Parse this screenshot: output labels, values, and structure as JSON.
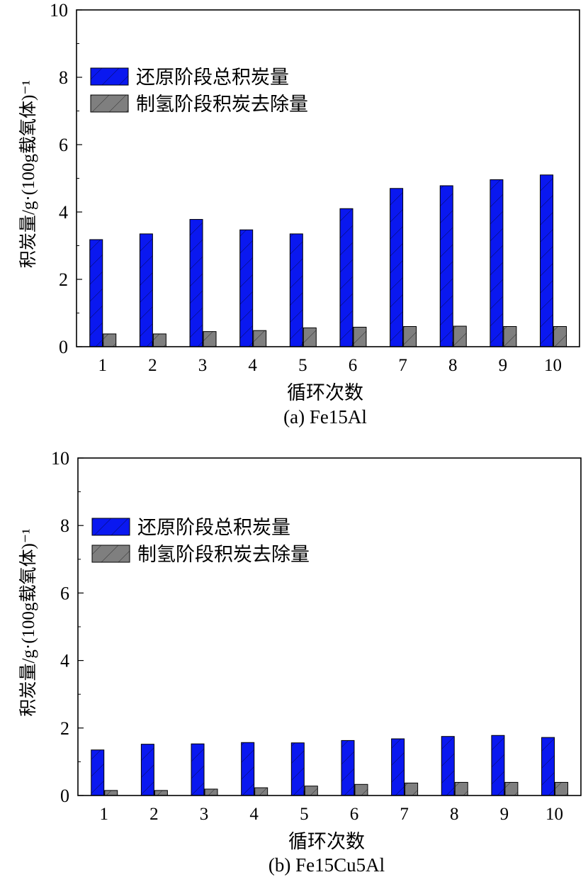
{
  "colors": {
    "series_reduction": "#0a18f0",
    "series_hydrogen": "#7f7f7f",
    "axis": "#000000"
  },
  "chart_data": [
    {
      "type": "bar",
      "caption": "(a) Fe15Al",
      "xlabel": "循环次数",
      "ylabel": "积炭量/g·(100g载氧体)⁻¹",
      "ylim": [
        0,
        10
      ],
      "yticks": [
        0,
        2,
        4,
        6,
        8,
        10
      ],
      "categories": [
        "1",
        "2",
        "3",
        "4",
        "5",
        "6",
        "7",
        "8",
        "9",
        "10"
      ],
      "legend_position": "upper-left",
      "grid": false,
      "series": [
        {
          "name": "还原阶段总积炭量",
          "values": [
            3.18,
            3.35,
            3.78,
            3.47,
            3.35,
            4.1,
            4.7,
            4.78,
            4.96,
            5.1
          ]
        },
        {
          "name": "制氢阶段积炭去除量",
          "values": [
            0.38,
            0.38,
            0.45,
            0.48,
            0.56,
            0.58,
            0.6,
            0.61,
            0.6,
            0.6
          ]
        }
      ]
    },
    {
      "type": "bar",
      "caption": "(b) Fe15Cu5Al",
      "xlabel": "循环次数",
      "ylabel": "积炭量/g·(100g载氧体)⁻¹",
      "ylim": [
        0,
        10
      ],
      "yticks": [
        0,
        2,
        4,
        6,
        8,
        10
      ],
      "categories": [
        "1",
        "2",
        "3",
        "4",
        "5",
        "6",
        "7",
        "8",
        "9",
        "10"
      ],
      "legend_position": "upper-left",
      "grid": false,
      "series": [
        {
          "name": "还原阶段总积炭量",
          "values": [
            1.35,
            1.52,
            1.53,
            1.57,
            1.56,
            1.63,
            1.68,
            1.75,
            1.78,
            1.72
          ]
        },
        {
          "name": "制氢阶段积炭去除量",
          "values": [
            0.15,
            0.15,
            0.19,
            0.23,
            0.28,
            0.33,
            0.37,
            0.39,
            0.39,
            0.39
          ]
        }
      ]
    }
  ]
}
